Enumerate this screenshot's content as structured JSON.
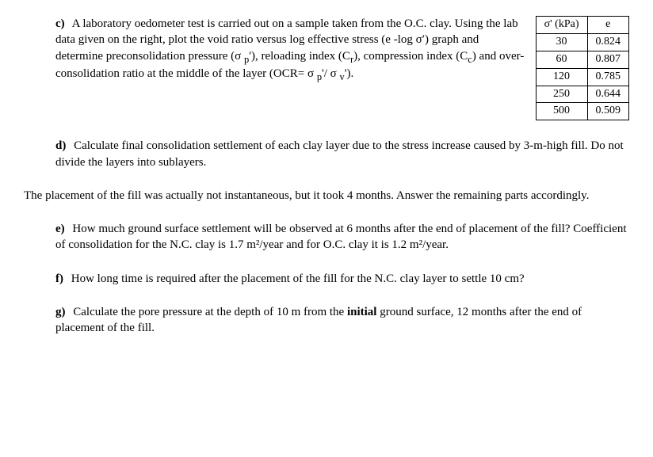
{
  "c": {
    "label": "c)",
    "text": "A laboratory oedometer test is carried out on a sample taken from the O.C. clay. Using the lab data given on the right, plot the void ratio versus log effective stress (e -log σ′) graph and determine preconsolidation pressure (σ p'), reloading index (Cr), compression index (Cc) and over-consolidation ratio at the middle of the layer (OCR= σ p'/ σ v').",
    "table": {
      "headers": [
        "σ' (kPa)",
        "e"
      ],
      "rows": [
        [
          "30",
          "0.824"
        ],
        [
          "60",
          "0.807"
        ],
        [
          "120",
          "0.785"
        ],
        [
          "250",
          "0.644"
        ],
        [
          "500",
          "0.509"
        ]
      ]
    }
  },
  "d": {
    "label": "d)",
    "text": "Calculate final consolidation settlement of each clay layer due to the stress increase caused by 3-m-high fill. Do not divide the layers into sublayers."
  },
  "intro": "The placement of the fill was actually not instantaneous, but it took 4 months. Answer the remaining parts accordingly.",
  "e": {
    "label": "e)",
    "text": "How much ground surface settlement will be observed at 6 months after the end of placement of the fill? Coefficient of consolidation for the N.C. clay is 1.7 m²/year and for O.C. clay it is 1.2 m²/year."
  },
  "f": {
    "label": "f)",
    "text": "How long time is required after the placement of the fill for the N.C. clay layer to settle 10 cm?"
  },
  "g": {
    "label": "g)",
    "text": "Calculate the pore pressure at the depth of 10 m from the initial ground surface, 12 months after the end of placement of the fill."
  }
}
